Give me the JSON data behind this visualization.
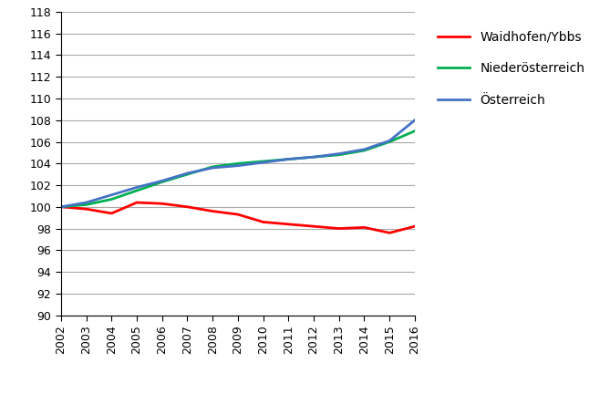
{
  "years": [
    2002,
    2003,
    2004,
    2005,
    2006,
    2007,
    2008,
    2009,
    2010,
    2011,
    2012,
    2013,
    2014,
    2015,
    2016
  ],
  "waidhofen": [
    100.0,
    99.8,
    99.4,
    100.4,
    100.3,
    100.0,
    99.6,
    99.3,
    98.6,
    98.4,
    98.2,
    98.0,
    98.1,
    97.6,
    98.2
  ],
  "niederoesterreich": [
    100.0,
    100.2,
    100.7,
    101.5,
    102.3,
    103.0,
    103.7,
    104.0,
    104.2,
    104.4,
    104.6,
    104.8,
    105.2,
    106.0,
    107.0
  ],
  "oesterreich": [
    100.0,
    100.4,
    101.1,
    101.8,
    102.4,
    103.1,
    103.6,
    103.8,
    104.1,
    104.4,
    104.6,
    104.9,
    105.3,
    106.1,
    108.0
  ],
  "waidhofen_color": "#FF0000",
  "niederoesterreich_color": "#00B050",
  "oesterreich_color": "#4472C4",
  "ylim": [
    90,
    118
  ],
  "yticks": [
    90,
    92,
    94,
    96,
    98,
    100,
    102,
    104,
    106,
    108,
    110,
    112,
    114,
    116,
    118
  ],
  "legend_labels": [
    "Waidhofen/Ybbs",
    "Niederösterreich",
    "Österreich"
  ],
  "background_color": "#FFFFFF",
  "grid_color": "#AAAAAA",
  "line_width": 2.0,
  "legend_fontsize": 10,
  "tick_fontsize": 9
}
